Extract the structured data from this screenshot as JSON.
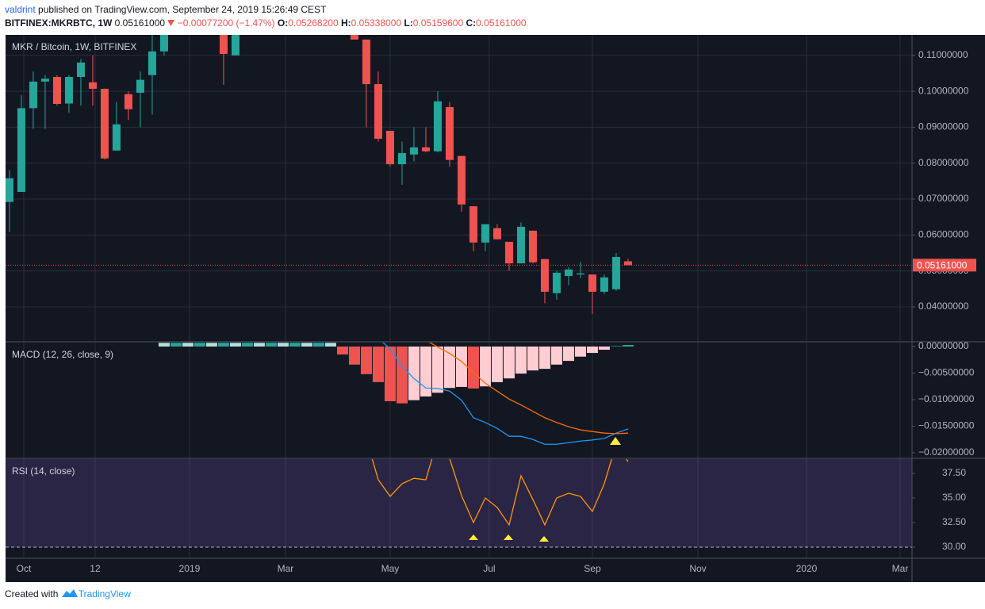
{
  "header": {
    "publisher": "valdrint",
    "published": "published on TradingView.com, September 24, 2019 15:26:49 CEST",
    "symbol": "BITFINEX:MKRBTC, 1W",
    "last": "0.05161000",
    "change": "−0.00077200 (−1.47%)",
    "ohlc": [
      {
        "label": "O:",
        "value": "0.05268200"
      },
      {
        "label": "H:",
        "value": "0.05338000"
      },
      {
        "label": "L:",
        "value": "0.05159600"
      },
      {
        "label": "C:",
        "value": "0.05161000"
      }
    ]
  },
  "footer": {
    "created_with": "Created with",
    "brand": "TradingView"
  },
  "chart_data": [
    {
      "type": "candlestick",
      "title": "MKR / Bitcoin, 1W, BITFINEX",
      "up_color": "#26a69a",
      "down_color": "#ef5350",
      "grid": true,
      "x": [
        0,
        1,
        2,
        3,
        4,
        5,
        6,
        7,
        8,
        9,
        10,
        11,
        12,
        13,
        18,
        19,
        29,
        30,
        31,
        32,
        33,
        34,
        35,
        36,
        37,
        38,
        39,
        40,
        41,
        42,
        43,
        44,
        45,
        46,
        47,
        48,
        49,
        50,
        51,
        52
      ],
      "open": [
        0.0692,
        0.072,
        0.0953,
        0.1027,
        0.104,
        0.0966,
        0.104,
        0.1025,
        0.1007,
        0.0835,
        0.0992,
        0.0996,
        0.1045,
        0.1111,
        0.1157,
        0.11,
        0.1157,
        0.1144,
        0.102,
        0.089,
        0.0797,
        0.0824,
        0.0844,
        0.0833,
        0.0956,
        0.082,
        0.068,
        0.0579,
        0.0619,
        0.0581,
        0.0521,
        0.0612,
        0.0533,
        0.0438,
        0.0486,
        0.049,
        0.049,
        0.0442,
        0.0449,
        0.052682
      ],
      "high": [
        0.078,
        0.099,
        0.1055,
        0.1045,
        0.1045,
        0.1045,
        0.109,
        0.11,
        0.1008,
        0.097,
        0.1,
        0.1055,
        0.1157,
        0.1157,
        0.1157,
        0.1157,
        0.1157,
        0.1144,
        0.1055,
        0.089,
        0.086,
        0.09,
        0.09,
        0.1,
        0.097,
        0.082,
        0.068,
        0.063,
        0.063,
        0.0581,
        0.0635,
        0.0612,
        0.0533,
        0.05,
        0.051,
        0.0525,
        0.049,
        0.049,
        0.055,
        0.05338
      ],
      "low": [
        0.0608,
        0.072,
        0.0895,
        0.0895,
        0.096,
        0.094,
        0.096,
        0.096,
        0.081,
        0.0835,
        0.092,
        0.09,
        0.0935,
        0.11,
        0.1018,
        0.11,
        0.1144,
        0.09,
        0.086,
        0.079,
        0.074,
        0.0805,
        0.083,
        0.083,
        0.079,
        0.0665,
        0.0555,
        0.0555,
        0.0588,
        0.05,
        0.0521,
        0.0521,
        0.041,
        0.042,
        0.046,
        0.048,
        0.038,
        0.0435,
        0.0445,
        0.051596
      ],
      "close": [
        0.0758,
        0.0953,
        0.1027,
        0.1035,
        0.0965,
        0.104,
        0.108,
        0.1007,
        0.0813,
        0.0908,
        0.095,
        0.1032,
        0.1111,
        0.1157,
        0.1104,
        0.1157,
        0.1144,
        0.102,
        0.0868,
        0.0797,
        0.0828,
        0.0844,
        0.0833,
        0.0972,
        0.0809,
        0.0685,
        0.0579,
        0.063,
        0.0588,
        0.0521,
        0.0623,
        0.0524,
        0.0442,
        0.0495,
        0.0504,
        0.0493,
        0.0442,
        0.0482,
        0.0539,
        0.05161
      ],
      "last_price": {
        "value": 0.05161,
        "label": "0.05161000"
      },
      "ylim": [
        0.0305,
        0.1157
      ],
      "yticks": [
        {
          "value": 0.04,
          "label": "0.04000000"
        },
        {
          "value": 0.05,
          "label": "0.05000000"
        },
        {
          "value": 0.06,
          "label": "0.06000000"
        },
        {
          "value": 0.07,
          "label": "0.07000000"
        },
        {
          "value": 0.08,
          "label": "0.08000000"
        },
        {
          "value": 0.09,
          "label": "0.09000000"
        },
        {
          "value": 0.1,
          "label": "0.10000000"
        },
        {
          "value": 0.11,
          "label": "0.11000000"
        }
      ],
      "xlim": [
        -0.33,
        75.87
      ],
      "xticks": [
        {
          "value": 1.2,
          "label": "Oct"
        },
        {
          "value": 7.2,
          "label": "12"
        },
        {
          "value": 15.13,
          "label": "2019"
        },
        {
          "value": 23.2,
          "label": "Mar"
        },
        {
          "value": 32.0,
          "label": "May"
        },
        {
          "value": 40.33,
          "label": "Jul"
        },
        {
          "value": 49.0,
          "label": "Sep"
        },
        {
          "value": 57.87,
          "label": "Nov"
        },
        {
          "value": 67.0,
          "label": "2020"
        },
        {
          "value": 74.87,
          "label": "Mar"
        }
      ]
    },
    {
      "type": "macd",
      "title": "MACD (12, 26, close, 9)",
      "x": [
        13,
        14,
        15,
        16,
        17,
        18,
        19,
        20,
        21,
        22,
        23,
        24,
        25,
        26,
        27,
        28,
        29,
        30,
        31,
        32,
        33,
        34,
        35,
        36,
        37,
        38,
        39,
        40,
        41,
        42,
        43,
        44,
        45,
        46,
        47,
        48,
        49,
        50,
        51,
        52
      ],
      "histogram": [
        0.0007,
        0.0007,
        0.0007,
        0.0007,
        0.0007,
        0.0007,
        0.0007,
        0.0007,
        0.0007,
        0.0007,
        0.0007,
        0.0007,
        0.0007,
        0.0007,
        0.0007,
        -0.0015,
        -0.0034,
        -0.0052,
        -0.0067,
        -0.0103,
        -0.0107,
        -0.0101,
        -0.0094,
        -0.0087,
        -0.0078,
        -0.0076,
        -0.0079,
        -0.0075,
        -0.0067,
        -0.006,
        -0.0051,
        -0.0045,
        -0.0042,
        -0.0034,
        -0.0027,
        -0.0019,
        -0.0012,
        -0.0006,
        0.0001,
        0.0003
      ],
      "histogram_colors": [
        "#b2dfdb",
        "#26a69a",
        "#b2dfdb",
        "#26a69a",
        "#b2dfdb",
        "#26a69a",
        "#b2dfdb",
        "#26a69a",
        "#b2dfdb",
        "#26a69a",
        "#b2dfdb",
        "#26a69a",
        "#b2dfdb",
        "#26a69a",
        "#b2dfdb",
        "#ef5350",
        "#ef5350",
        "#ef5350",
        "#ef5350",
        "#ef5350",
        "#ef5350",
        "#ffcdd2",
        "#ffcdd2",
        "#ffcdd2",
        "#ffcdd2",
        "#ffcdd2",
        "#ef5350",
        "#ffcdd2",
        "#ffcdd2",
        "#ffcdd2",
        "#ffcdd2",
        "#ffcdd2",
        "#ffcdd2",
        "#ffcdd2",
        "#ffcdd2",
        "#ffcdd2",
        "#ffcdd2",
        "#ffcdd2",
        "#26a69a",
        "#26a69a"
      ],
      "lines": [
        {
          "color": "#2196f3",
          "values": [
            null,
            null,
            null,
            null,
            null,
            null,
            null,
            null,
            null,
            null,
            null,
            null,
            null,
            null,
            null,
            null,
            null,
            null,
            0.0015,
            -0.0004,
            -0.0037,
            -0.006,
            -0.0078,
            -0.0079,
            -0.0084,
            -0.0101,
            -0.0134,
            -0.0143,
            -0.0154,
            -0.0169,
            -0.0169,
            -0.0175,
            -0.0184,
            -0.0184,
            -0.0181,
            -0.0178,
            -0.0176,
            -0.0173,
            -0.0163,
            -0.0155
          ]
        },
        {
          "color": "#ff6d00",
          "values": [
            null,
            null,
            null,
            null,
            null,
            null,
            null,
            null,
            null,
            null,
            null,
            null,
            null,
            null,
            null,
            null,
            null,
            null,
            null,
            null,
            null,
            null,
            0.0012,
            -0.0001,
            -0.0013,
            -0.0028,
            -0.0049,
            -0.0069,
            -0.0084,
            -0.0099,
            -0.011,
            -0.0122,
            -0.0134,
            -0.0143,
            -0.0151,
            -0.0157,
            -0.016,
            -0.0163,
            -0.0164,
            -0.0163
          ]
        }
      ],
      "ylim": [
        -0.0209,
        0.00075
      ],
      "yticks": [
        {
          "value": 0,
          "label": "0.00000000"
        },
        {
          "value": -0.005,
          "label": "−0.00500000"
        },
        {
          "value": -0.01,
          "label": "−0.01000000"
        },
        {
          "value": -0.015,
          "label": "−0.01500000"
        },
        {
          "value": -0.02,
          "label": "−0.02000000"
        }
      ]
    },
    {
      "type": "line",
      "title": "RSI (14, close)",
      "color": "#ff9800",
      "band_low": 30,
      "band_fill": "rgba(126,87,194,0.22)",
      "x": [
        30,
        31,
        32,
        33,
        34,
        35,
        36,
        37,
        38,
        39,
        40,
        41,
        42,
        43,
        44,
        45,
        46,
        47,
        48,
        49,
        50,
        51,
        52
      ],
      "values": [
        41,
        36.85,
        35.16,
        36.45,
        37.0,
        36.85,
        41,
        39.0,
        35.24,
        32.5,
        35.0,
        34.03,
        32.26,
        37.26,
        34.84,
        32.26,
        35.0,
        35.48,
        35.16,
        33.63,
        36.45,
        40.5,
        38.7
      ],
      "ylim": [
        28.95,
        38.95
      ],
      "yticks": [
        {
          "value": 30,
          "label": "30.00"
        },
        {
          "value": 32.5,
          "label": "32.50"
        },
        {
          "value": 35,
          "label": "35.00"
        },
        {
          "value": 37.5,
          "label": "37.50"
        }
      ]
    }
  ]
}
